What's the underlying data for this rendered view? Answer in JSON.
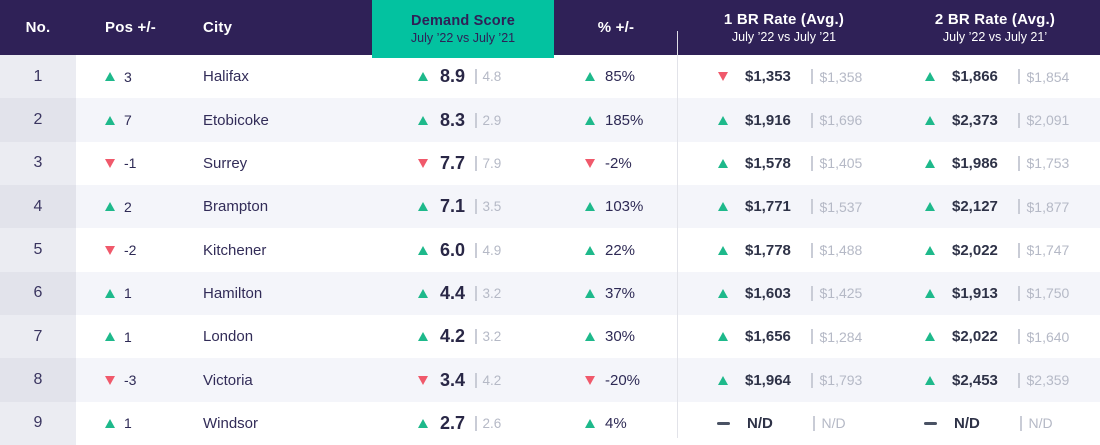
{
  "colors": {
    "header_bg": "#2F2157",
    "accent_teal": "#03C2A0",
    "up_green": "#1EB98B",
    "down_red": "#F0596B",
    "alt_row_bg": "#F4F5FA",
    "no_column_bg": "#EBECF2",
    "no_column_alt_bg": "#E2E3EB",
    "previous_value_text": "#B5B9C6",
    "dark_text": "#2E2A55"
  },
  "header": {
    "no": "No.",
    "pos": "Pos +/-",
    "city": "City",
    "demand": {
      "title": "Demand Score",
      "sub": "July ’22 vs July ’21"
    },
    "pct": "% +/-",
    "br1": {
      "title": "1 BR Rate (Avg.)",
      "sub": "July ’22 vs July ’21"
    },
    "br2": {
      "title": "2 BR Rate (Avg.)",
      "sub": "July ’22 vs July 21’"
    }
  },
  "rows": [
    {
      "no": "1",
      "pos_dir": "up",
      "pos": "3",
      "city": "Halifax",
      "score_dir": "up",
      "score": "8.9",
      "score_prev": "4.8",
      "pct_dir": "up",
      "pct": "85%",
      "br1_dir": "down",
      "br1": "$1,353",
      "br1_prev": "$1,358",
      "br2_dir": "up",
      "br2": "$1,866",
      "br2_prev": "$1,854"
    },
    {
      "no": "2",
      "pos_dir": "up",
      "pos": "7",
      "city": "Etobicoke",
      "score_dir": "up",
      "score": "8.3",
      "score_prev": "2.9",
      "pct_dir": "up",
      "pct": "185%",
      "br1_dir": "up",
      "br1": "$1,916",
      "br1_prev": "$1,696",
      "br2_dir": "up",
      "br2": "$2,373",
      "br2_prev": "$2,091"
    },
    {
      "no": "3",
      "pos_dir": "down",
      "pos": "-1",
      "city": "Surrey",
      "score_dir": "down",
      "score": "7.7",
      "score_prev": "7.9",
      "pct_dir": "down",
      "pct": "-2%",
      "br1_dir": "up",
      "br1": "$1,578",
      "br1_prev": "$1,405",
      "br2_dir": "up",
      "br2": "$1,986",
      "br2_prev": "$1,753"
    },
    {
      "no": "4",
      "pos_dir": "up",
      "pos": "2",
      "city": "Brampton",
      "score_dir": "up",
      "score": "7.1",
      "score_prev": "3.5",
      "pct_dir": "up",
      "pct": "103%",
      "br1_dir": "up",
      "br1": "$1,771",
      "br1_prev": "$1,537",
      "br2_dir": "up",
      "br2": "$2,127",
      "br2_prev": "$1,877"
    },
    {
      "no": "5",
      "pos_dir": "down",
      "pos": "-2",
      "city": "Kitchener",
      "score_dir": "up",
      "score": "6.0",
      "score_prev": "4.9",
      "pct_dir": "up",
      "pct": "22%",
      "br1_dir": "up",
      "br1": "$1,778",
      "br1_prev": "$1,488",
      "br2_dir": "up",
      "br2": "$2,022",
      "br2_prev": "$1,747"
    },
    {
      "no": "6",
      "pos_dir": "up",
      "pos": "1",
      "city": "Hamilton",
      "score_dir": "up",
      "score": "4.4",
      "score_prev": "3.2",
      "pct_dir": "up",
      "pct": "37%",
      "br1_dir": "up",
      "br1": "$1,603",
      "br1_prev": "$1,425",
      "br2_dir": "up",
      "br2": "$1,913",
      "br2_prev": "$1,750"
    },
    {
      "no": "7",
      "pos_dir": "up",
      "pos": "1",
      "city": "London",
      "score_dir": "up",
      "score": "4.2",
      "score_prev": "3.2",
      "pct_dir": "up",
      "pct": "30%",
      "br1_dir": "up",
      "br1": "$1,656",
      "br1_prev": "$1,284",
      "br2_dir": "up",
      "br2": "$2,022",
      "br2_prev": "$1,640"
    },
    {
      "no": "8",
      "pos_dir": "down",
      "pos": "-3",
      "city": "Victoria",
      "score_dir": "down",
      "score": "3.4",
      "score_prev": "4.2",
      "pct_dir": "down",
      "pct": "-20%",
      "br1_dir": "up",
      "br1": "$1,964",
      "br1_prev": "$1,793",
      "br2_dir": "up",
      "br2": "$2,453",
      "br2_prev": "$2,359"
    },
    {
      "no": "9",
      "pos_dir": "up",
      "pos": "1",
      "city": "Windsor",
      "score_dir": "up",
      "score": "2.7",
      "score_prev": "2.6",
      "pct_dir": "up",
      "pct": "4%",
      "br1_dir": "flat",
      "br1": "N/D",
      "br1_prev": "N/D",
      "br2_dir": "flat",
      "br2": "N/D",
      "br2_prev": "N/D"
    }
  ]
}
